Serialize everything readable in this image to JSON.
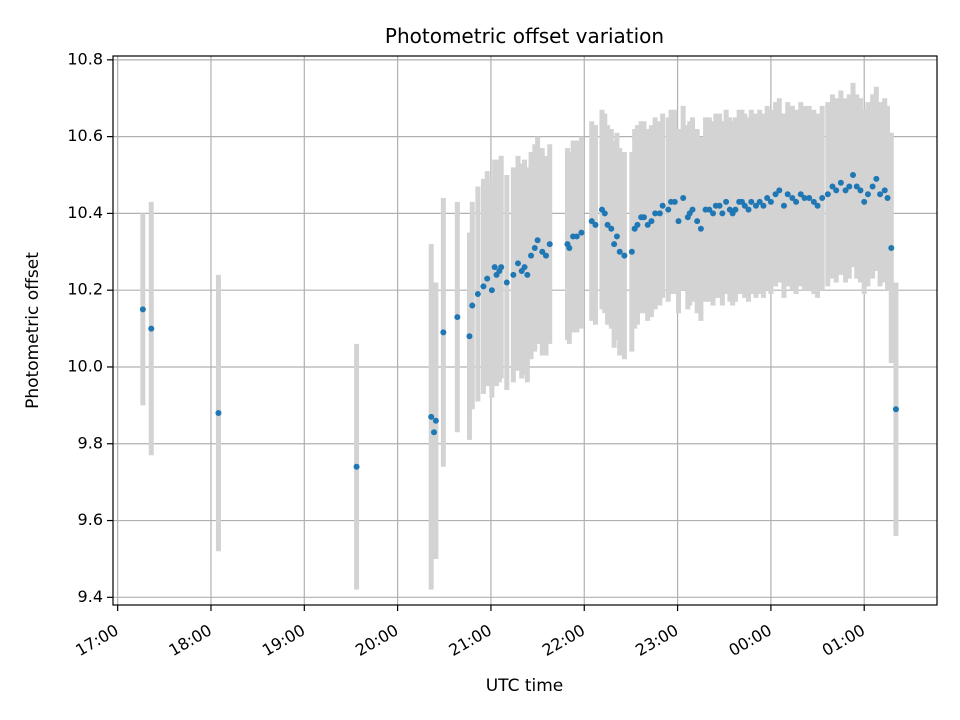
{
  "chart_data": {
    "type": "scatter",
    "title": "Photometric offset variation",
    "xlabel": "UTC time",
    "ylabel": "Photometric offset",
    "x_unit": "hours",
    "xlim": [
      16.95,
      25.78
    ],
    "ylim": [
      9.38,
      10.81
    ],
    "grid": true,
    "x_ticks": [
      {
        "value": 17,
        "label": "17:00"
      },
      {
        "value": 18,
        "label": "18:00"
      },
      {
        "value": 19,
        "label": "19:00"
      },
      {
        "value": 20,
        "label": "20:00"
      },
      {
        "value": 21,
        "label": "21:00"
      },
      {
        "value": 22,
        "label": "22:00"
      },
      {
        "value": 23,
        "label": "23:00"
      },
      {
        "value": 24,
        "label": "00:00"
      },
      {
        "value": 25,
        "label": "01:00"
      }
    ],
    "y_ticks": [
      {
        "value": 9.4,
        "label": "9.4"
      },
      {
        "value": 9.6,
        "label": "9.6"
      },
      {
        "value": 9.8,
        "label": "9.8"
      },
      {
        "value": 10.0,
        "label": "10.0"
      },
      {
        "value": 10.2,
        "label": "10.2"
      },
      {
        "value": 10.4,
        "label": "10.4"
      },
      {
        "value": 10.6,
        "label": "10.6"
      },
      {
        "value": 10.8,
        "label": "10.8"
      }
    ],
    "colors": {
      "points": "#1f77b4",
      "errorbars": "#d3d3d3",
      "grid": "#b0b0b0"
    },
    "series": [
      {
        "x": [
          17.27,
          17.36,
          18.08,
          19.56,
          20.36,
          20.39,
          20.41,
          20.49,
          20.64,
          20.77,
          20.8,
          20.86,
          20.92,
          20.96,
          21.01,
          21.04,
          21.06,
          21.09,
          21.11,
          21.17,
          21.24,
          21.29,
          21.33,
          21.36,
          21.39,
          21.43,
          21.47,
          21.5,
          21.55,
          21.59,
          21.63,
          21.82,
          21.84,
          21.88,
          21.92,
          21.97,
          22.08,
          22.12,
          22.19,
          22.22,
          22.25,
          22.29,
          22.32,
          22.35,
          22.38,
          22.43,
          22.51,
          22.54,
          22.57,
          22.61,
          22.64,
          22.68,
          22.72,
          22.76,
          22.81,
          22.84,
          22.9,
          22.93,
          22.97,
          23.01,
          23.06,
          23.11,
          23.13,
          23.16,
          23.21,
          23.25,
          23.3,
          23.34,
          23.38,
          23.41,
          23.45,
          23.48,
          23.52,
          23.56,
          23.59,
          23.62,
          23.66,
          23.69,
          23.72,
          23.76,
          23.79,
          23.84,
          23.88,
          23.92,
          23.96,
          24.0,
          24.05,
          24.09,
          24.14,
          24.18,
          24.23,
          24.27,
          24.32,
          24.36,
          24.41,
          24.46,
          24.5,
          24.55,
          24.61,
          24.66,
          24.7,
          24.75,
          24.8,
          24.84,
          24.88,
          24.92,
          24.96,
          25.0,
          25.04,
          25.09,
          25.13,
          25.17,
          25.22,
          25.25,
          25.29,
          25.34
        ],
        "y": [
          10.15,
          10.1,
          9.88,
          9.74,
          9.87,
          9.83,
          9.86,
          10.09,
          10.13,
          10.08,
          10.16,
          10.19,
          10.21,
          10.23,
          10.2,
          10.26,
          10.24,
          10.25,
          10.26,
          10.22,
          10.24,
          10.27,
          10.25,
          10.26,
          10.24,
          10.29,
          10.31,
          10.33,
          10.3,
          10.29,
          10.32,
          10.32,
          10.31,
          10.34,
          10.34,
          10.35,
          10.38,
          10.37,
          10.41,
          10.4,
          10.37,
          10.36,
          10.32,
          10.34,
          10.3,
          10.29,
          10.3,
          10.36,
          10.37,
          10.39,
          10.39,
          10.37,
          10.38,
          10.4,
          10.4,
          10.42,
          10.41,
          10.43,
          10.43,
          10.38,
          10.44,
          10.39,
          10.4,
          10.41,
          10.38,
          10.36,
          10.41,
          10.41,
          10.4,
          10.42,
          10.42,
          10.4,
          10.43,
          10.41,
          10.4,
          10.41,
          10.43,
          10.43,
          10.42,
          10.41,
          10.43,
          10.42,
          10.43,
          10.42,
          10.44,
          10.43,
          10.45,
          10.46,
          10.42,
          10.45,
          10.44,
          10.43,
          10.45,
          10.44,
          10.44,
          10.43,
          10.42,
          10.44,
          10.45,
          10.47,
          10.46,
          10.48,
          10.46,
          10.47,
          10.5,
          10.47,
          10.46,
          10.43,
          10.45,
          10.47,
          10.49,
          10.45,
          10.46,
          10.44,
          10.31,
          9.89
        ],
        "yerr": [
          0.25,
          0.33,
          0.36,
          0.32,
          0.45,
          0.33,
          0.36,
          0.35,
          0.3,
          0.27,
          0.27,
          0.28,
          0.28,
          0.28,
          0.28,
          0.28,
          0.29,
          0.29,
          0.29,
          0.28,
          0.28,
          0.28,
          0.28,
          0.28,
          0.28,
          0.27,
          0.27,
          0.27,
          0.27,
          0.26,
          0.26,
          0.25,
          0.25,
          0.25,
          0.25,
          0.25,
          0.26,
          0.26,
          0.26,
          0.26,
          0.26,
          0.26,
          0.27,
          0.27,
          0.27,
          0.27,
          0.26,
          0.26,
          0.26,
          0.25,
          0.25,
          0.25,
          0.25,
          0.25,
          0.24,
          0.24,
          0.24,
          0.24,
          0.24,
          0.24,
          0.24,
          0.24,
          0.24,
          0.24,
          0.24,
          0.24,
          0.24,
          0.24,
          0.24,
          0.24,
          0.24,
          0.24,
          0.24,
          0.24,
          0.24,
          0.24,
          0.24,
          0.24,
          0.24,
          0.24,
          0.24,
          0.24,
          0.24,
          0.24,
          0.24,
          0.24,
          0.24,
          0.24,
          0.24,
          0.24,
          0.24,
          0.24,
          0.24,
          0.24,
          0.24,
          0.24,
          0.24,
          0.24,
          0.24,
          0.24,
          0.24,
          0.24,
          0.24,
          0.24,
          0.24,
          0.24,
          0.24,
          0.24,
          0.24,
          0.24,
          0.24,
          0.24,
          0.24,
          0.24,
          0.3,
          0.33
        ]
      }
    ]
  }
}
